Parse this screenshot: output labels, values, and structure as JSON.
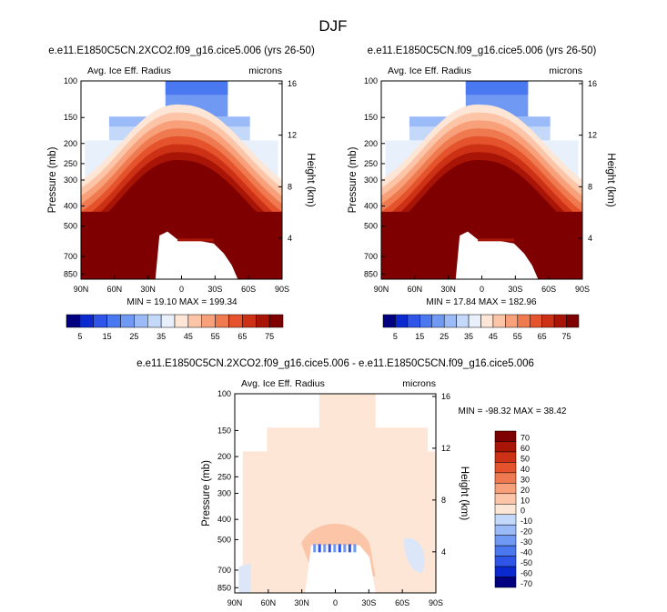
{
  "page_title": "DJF",
  "chart_data": [
    {
      "type": "heatmap",
      "panel": "control",
      "title": "e.e11.E1850C5CN.2XCO2.f09_g16.cice5.006 (yrs 26-50)",
      "left_label": "Avg. Ice Eff. Radius",
      "right_label": "microns",
      "xlabel": "",
      "ylabel": "Pressure (mb)",
      "ylabel_right": "Height (km)",
      "x_ticks": [
        "90N",
        "60N",
        "30N",
        "0",
        "30S",
        "60S",
        "90S"
      ],
      "y_ticks": [
        "100",
        "150",
        "200",
        "250",
        "300",
        "400",
        "500",
        "700",
        "850"
      ],
      "y_ticks_right": [
        "16",
        "12",
        "8",
        "4"
      ],
      "stats": "MIN = 19.10   MAX = 199.34",
      "colorbar_labels": [
        "5",
        "15",
        "25",
        "35",
        "45",
        "55",
        "65",
        "75"
      ],
      "levels": [
        5,
        10,
        15,
        20,
        25,
        30,
        35,
        40,
        45,
        50,
        55,
        60,
        65,
        70,
        75
      ]
    },
    {
      "type": "heatmap",
      "panel": "control",
      "title": "e.e11.E1850C5CN.f09_g16.cice5.006 (yrs 26-50)",
      "left_label": "Avg. Ice Eff. Radius",
      "right_label": "microns",
      "xlabel": "",
      "ylabel": "Pressure (mb)",
      "ylabel_right": "Height (km)",
      "x_ticks": [
        "90N",
        "60N",
        "30N",
        "0",
        "30S",
        "60S",
        "90S"
      ],
      "y_ticks": [
        "100",
        "150",
        "200",
        "250",
        "300",
        "400",
        "500",
        "700",
        "850"
      ],
      "y_ticks_right": [
        "16",
        "12",
        "8",
        "4"
      ],
      "stats": "MIN = 17.84   MAX = 182.96",
      "colorbar_labels": [
        "5",
        "15",
        "25",
        "35",
        "45",
        "55",
        "65",
        "75"
      ],
      "levels": [
        5,
        10,
        15,
        20,
        25,
        30,
        35,
        40,
        45,
        50,
        55,
        60,
        65,
        70,
        75
      ]
    },
    {
      "type": "heatmap",
      "panel": "difference",
      "title": "e.e11.E1850C5CN.2XCO2.f09_g16.cice5.006 - e.e11.E1850C5CN.f09_g16.cice5.006",
      "left_label": "Avg. Ice Eff. Radius",
      "right_label": "microns",
      "xlabel": "",
      "ylabel": "Pressure (mb)",
      "ylabel_right": "Height (km)",
      "x_ticks": [
        "90N",
        "60N",
        "30N",
        "0",
        "30S",
        "60S",
        "90S"
      ],
      "y_ticks": [
        "100",
        "150",
        "200",
        "250",
        "300",
        "400",
        "500",
        "700",
        "850"
      ],
      "y_ticks_right": [
        "16",
        "12",
        "8",
        "4"
      ],
      "stats": "MIN = -98.32   MAX = 38.42",
      "colorbar_labels": [
        "70",
        "60",
        "50",
        "40",
        "30",
        "20",
        "10",
        "0",
        "-10",
        "-20",
        "-30",
        "-40",
        "-50",
        "-60",
        "-70"
      ],
      "levels": [
        70,
        60,
        50,
        40,
        30,
        20,
        10,
        0,
        -10,
        -20,
        -30,
        -40,
        -50,
        -60,
        -70
      ]
    }
  ],
  "colors": {
    "control_scale": [
      "#000080",
      "#0a2ad0",
      "#2f55e8",
      "#4a78f0",
      "#7099f4",
      "#9bbaf8",
      "#c4d8fa",
      "#e8f0fc",
      "#fde6d6",
      "#fcc5a8",
      "#f8a07a",
      "#f07a50",
      "#e4532c",
      "#cc3015",
      "#a81506",
      "#7f0000"
    ],
    "diff_scale": [
      "#7f0000",
      "#a81506",
      "#cc3015",
      "#e4532c",
      "#f07a50",
      "#f8a07a",
      "#fcc5a8",
      "#fde6d6",
      "#c4d8fa",
      "#9bbaf8",
      "#7099f4",
      "#4a78f0",
      "#2f55e8",
      "#0a2ad0",
      "#000080"
    ],
    "diff_base": "#fde6d6",
    "diff_blue": "#dbe7f8"
  }
}
